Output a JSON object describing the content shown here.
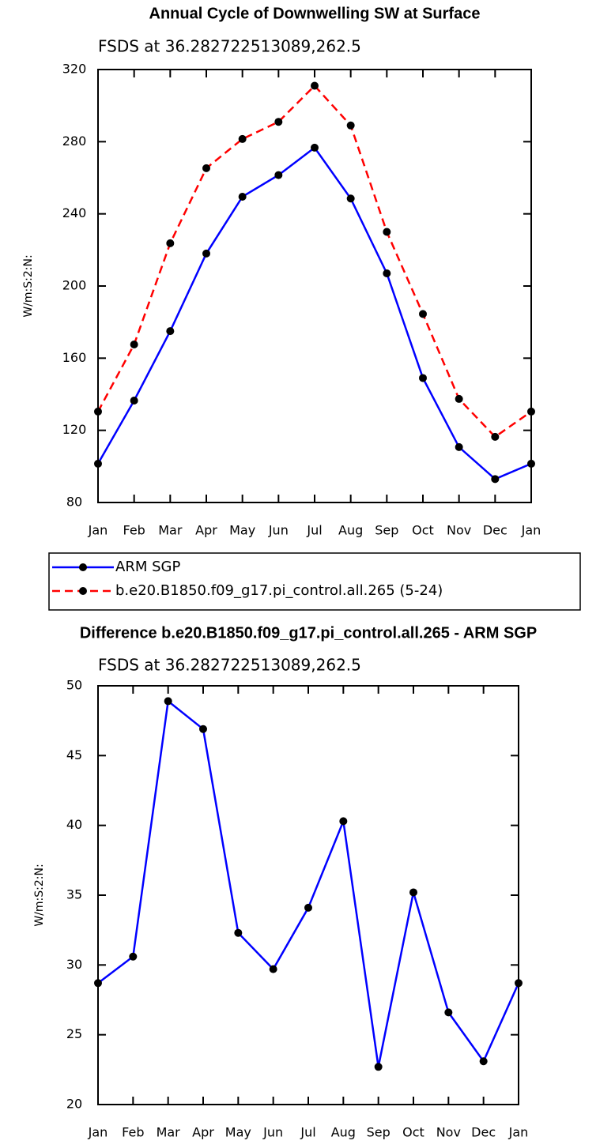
{
  "chart_data": [
    {
      "type": "line",
      "title": "Annual Cycle of Downwelling SW at Surface",
      "subtitle": "FSDS at 36.282722513089,262.5",
      "y_label": "W/m:S:2:N:",
      "categories": [
        "Jan",
        "Feb",
        "Mar",
        "Apr",
        "May",
        "Jun",
        "Jul",
        "Aug",
        "Sep",
        "Oct",
        "Nov",
        "Dec",
        "Jan"
      ],
      "series": [
        {
          "name": "ARM SGP",
          "color": "#0000ff",
          "dashed": false,
          "values": [
            101.5,
            136.5,
            175,
            218,
            249.5,
            261.5,
            276.7,
            248.5,
            207,
            149,
            110.7,
            93,
            101.5
          ]
        },
        {
          "name": "b.e20.B1850.f09_g17.pi_control.all.265 (5-24)",
          "color": "#ff0000",
          "dashed": true,
          "values": [
            130.4,
            167.6,
            223.7,
            265.3,
            281.5,
            291,
            311,
            289,
            230,
            184.5,
            137.4,
            116.4,
            130.4
          ]
        }
      ],
      "ylim": [
        80,
        320
      ],
      "yticks": [
        80,
        120,
        160,
        200,
        240,
        280,
        320
      ],
      "legend": "below"
    },
    {
      "type": "line",
      "title": "Difference b.e20.B1850.f09_g17.pi_control.all.265 - ARM SGP",
      "subtitle": "FSDS at 36.282722513089,262.5",
      "y_label": "W/m:S:2:N:",
      "categories": [
        "Jan",
        "Feb",
        "Mar",
        "Apr",
        "May",
        "Jun",
        "Jul",
        "Aug",
        "Sep",
        "Oct",
        "Nov",
        "Dec",
        "Jan"
      ],
      "series": [
        {
          "color": "#0000ff",
          "dashed": false,
          "values": [
            28.7,
            30.6,
            48.9,
            46.9,
            32.3,
            29.7,
            34.1,
            40.3,
            22.7,
            35.2,
            26.6,
            23.1,
            28.7
          ]
        }
      ],
      "ylim": [
        20,
        50
      ],
      "yticks": [
        20,
        25,
        30,
        35,
        40,
        45,
        50
      ]
    }
  ]
}
